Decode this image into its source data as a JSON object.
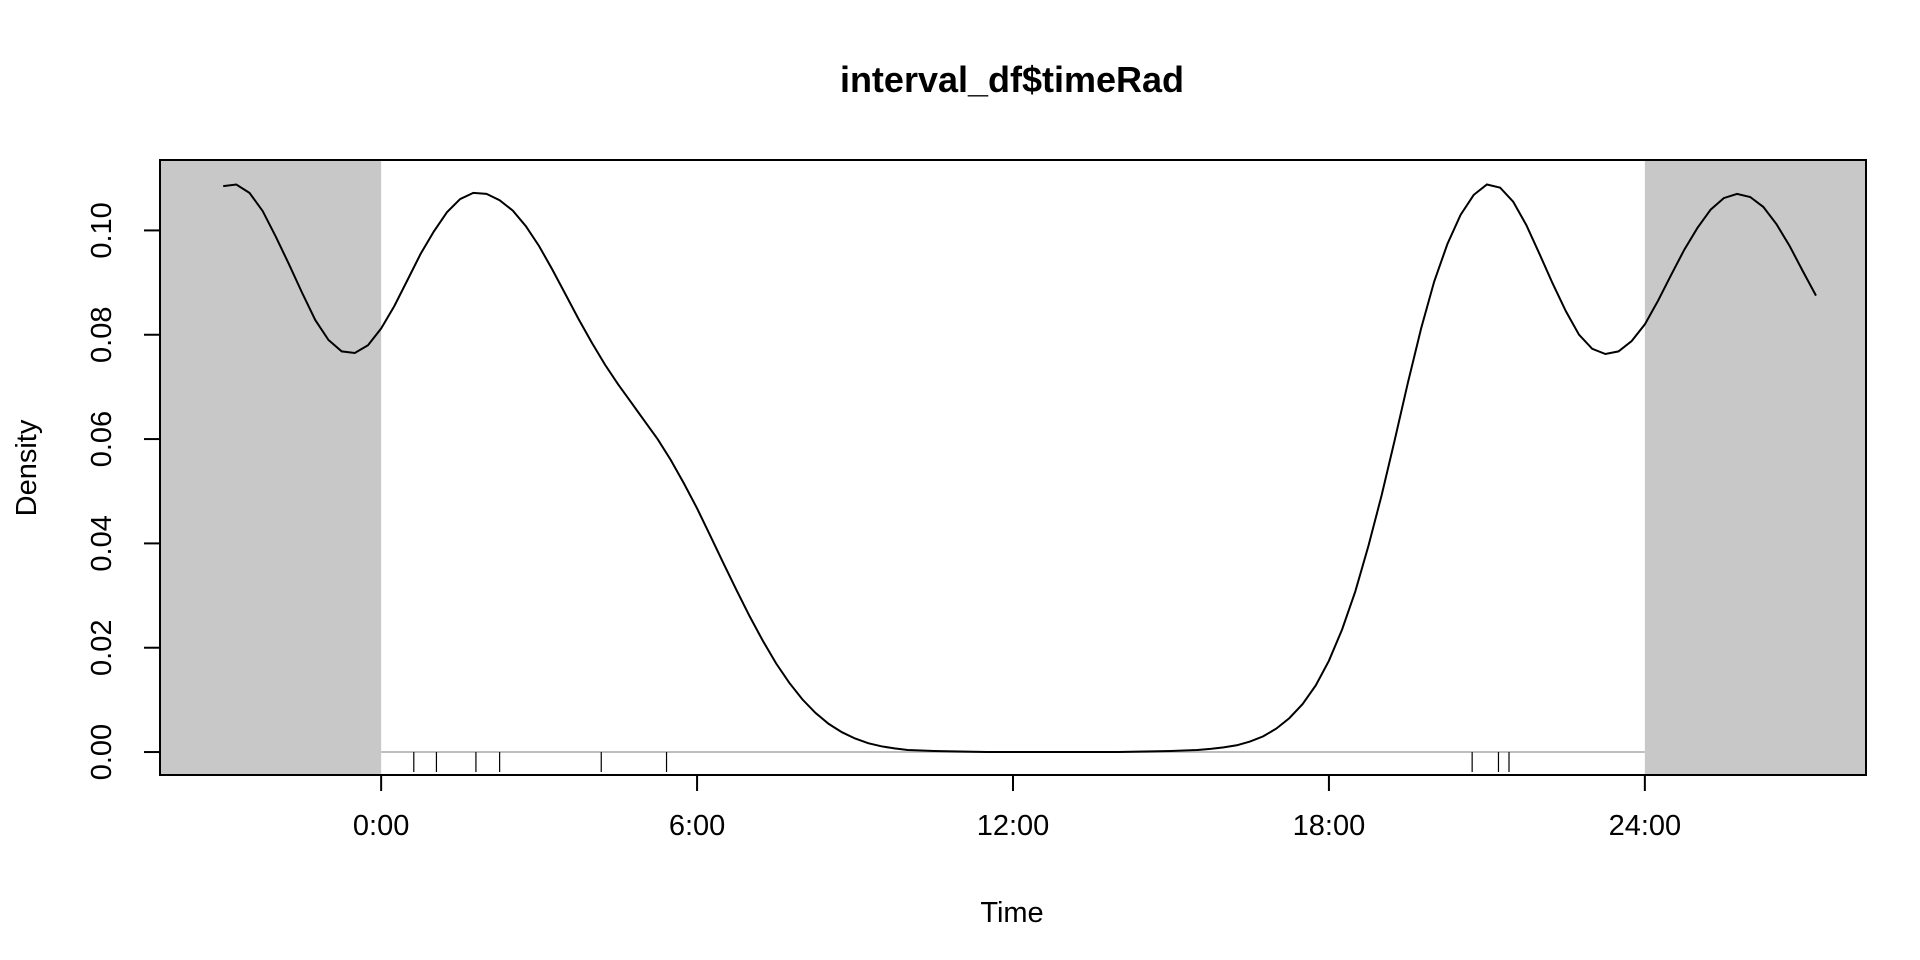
{
  "chart_data": {
    "type": "line",
    "title": "interval_df$timeRad",
    "xlabel": "Time",
    "ylabel": "Density",
    "xlim": [
      -4.2,
      28.2
    ],
    "ylim": [
      -0.0044,
      0.1135
    ],
    "x_ticks": [
      {
        "value": 0,
        "label": "0:00"
      },
      {
        "value": 6,
        "label": "6:00"
      },
      {
        "value": 12,
        "label": "12:00"
      },
      {
        "value": 18,
        "label": "18:00"
      },
      {
        "value": 24,
        "label": "24:00"
      }
    ],
    "y_ticks": [
      {
        "value": 0.0,
        "label": "0.00"
      },
      {
        "value": 0.02,
        "label": "0.02"
      },
      {
        "value": 0.04,
        "label": "0.04"
      },
      {
        "value": 0.06,
        "label": "0.06"
      },
      {
        "value": 0.08,
        "label": "0.08"
      },
      {
        "value": 0.1,
        "label": "0.10"
      }
    ],
    "shaded_regions": [
      {
        "from": -4.2,
        "to": 0,
        "color": "#c8c8c8"
      },
      {
        "from": 24,
        "to": 28.2,
        "color": "#c8c8c8"
      }
    ],
    "baseline": {
      "y": 0,
      "from": 0,
      "to": 24,
      "color": "#bebebe"
    },
    "rug": [
      0.62,
      1.05,
      1.8,
      2.25,
      4.18,
      5.42,
      20.72,
      21.22,
      21.42
    ],
    "series": [
      {
        "color": "#000000",
        "points": [
          [
            -3.0,
            0.1085
          ],
          [
            -2.75,
            0.1088
          ],
          [
            -2.5,
            0.1072
          ],
          [
            -2.25,
            0.1037
          ],
          [
            -2.0,
            0.0988
          ],
          [
            -1.75,
            0.0935
          ],
          [
            -1.5,
            0.088
          ],
          [
            -1.25,
            0.0828
          ],
          [
            -1.0,
            0.079
          ],
          [
            -0.75,
            0.0768
          ],
          [
            -0.5,
            0.0765
          ],
          [
            -0.25,
            0.078
          ],
          [
            0.0,
            0.0812
          ],
          [
            0.25,
            0.0855
          ],
          [
            0.5,
            0.0905
          ],
          [
            0.75,
            0.0955
          ],
          [
            1.0,
            0.0998
          ],
          [
            1.25,
            0.1035
          ],
          [
            1.5,
            0.106
          ],
          [
            1.75,
            0.1072
          ],
          [
            2.0,
            0.107
          ],
          [
            2.25,
            0.1058
          ],
          [
            2.5,
            0.1038
          ],
          [
            2.75,
            0.1008
          ],
          [
            3.0,
            0.097
          ],
          [
            3.25,
            0.0925
          ],
          [
            3.5,
            0.0878
          ],
          [
            3.75,
            0.083
          ],
          [
            4.0,
            0.0785
          ],
          [
            4.25,
            0.0743
          ],
          [
            4.5,
            0.0705
          ],
          [
            4.75,
            0.067
          ],
          [
            5.0,
            0.0635
          ],
          [
            5.25,
            0.06
          ],
          [
            5.5,
            0.056
          ],
          [
            5.75,
            0.0515
          ],
          [
            6.0,
            0.0467
          ],
          [
            6.25,
            0.0415
          ],
          [
            6.5,
            0.0362
          ],
          [
            6.75,
            0.031
          ],
          [
            7.0,
            0.026
          ],
          [
            7.25,
            0.0213
          ],
          [
            7.5,
            0.017
          ],
          [
            7.75,
            0.0133
          ],
          [
            8.0,
            0.0101
          ],
          [
            8.25,
            0.0075
          ],
          [
            8.5,
            0.0054
          ],
          [
            8.75,
            0.0038
          ],
          [
            9.0,
            0.0026
          ],
          [
            9.25,
            0.0017
          ],
          [
            9.5,
            0.0011
          ],
          [
            9.75,
            0.0007
          ],
          [
            10.0,
            0.0004
          ],
          [
            10.5,
            0.0002
          ],
          [
            11.0,
            0.0001
          ],
          [
            11.5,
            0.0
          ],
          [
            12.0,
            0.0
          ],
          [
            12.5,
            0.0
          ],
          [
            13.0,
            0.0
          ],
          [
            13.5,
            0.0
          ],
          [
            14.0,
            0.0
          ],
          [
            14.5,
            0.0001
          ],
          [
            15.0,
            0.0002
          ],
          [
            15.5,
            0.0004
          ],
          [
            15.75,
            0.0006
          ],
          [
            16.0,
            0.0009
          ],
          [
            16.25,
            0.0013
          ],
          [
            16.5,
            0.002
          ],
          [
            16.75,
            0.003
          ],
          [
            17.0,
            0.0045
          ],
          [
            17.25,
            0.0065
          ],
          [
            17.5,
            0.0092
          ],
          [
            17.75,
            0.0128
          ],
          [
            18.0,
            0.0175
          ],
          [
            18.25,
            0.0235
          ],
          [
            18.5,
            0.0308
          ],
          [
            18.75,
            0.0395
          ],
          [
            19.0,
            0.0492
          ],
          [
            19.25,
            0.0598
          ],
          [
            19.5,
            0.0708
          ],
          [
            19.75,
            0.0812
          ],
          [
            20.0,
            0.0902
          ],
          [
            20.25,
            0.0974
          ],
          [
            20.5,
            0.103
          ],
          [
            20.75,
            0.1068
          ],
          [
            21.0,
            0.1088
          ],
          [
            21.25,
            0.1082
          ],
          [
            21.5,
            0.1055
          ],
          [
            21.75,
            0.101
          ],
          [
            22.0,
            0.0955
          ],
          [
            22.25,
            0.0898
          ],
          [
            22.5,
            0.0845
          ],
          [
            22.75,
            0.08
          ],
          [
            23.0,
            0.0773
          ],
          [
            23.25,
            0.0763
          ],
          [
            23.5,
            0.0768
          ],
          [
            23.75,
            0.0788
          ],
          [
            24.0,
            0.082
          ],
          [
            24.25,
            0.0865
          ],
          [
            24.5,
            0.0915
          ],
          [
            24.75,
            0.0963
          ],
          [
            25.0,
            0.1005
          ],
          [
            25.25,
            0.104
          ],
          [
            25.5,
            0.1062
          ],
          [
            25.75,
            0.107
          ],
          [
            26.0,
            0.1064
          ],
          [
            26.25,
            0.1045
          ],
          [
            26.5,
            0.1012
          ],
          [
            26.75,
            0.097
          ],
          [
            27.0,
            0.0922
          ],
          [
            27.25,
            0.0875
          ]
        ]
      }
    ]
  }
}
